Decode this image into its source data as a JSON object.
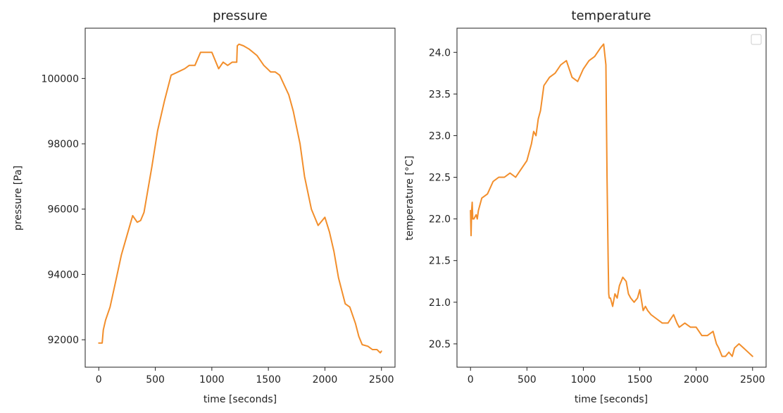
{
  "chart_data": [
    {
      "type": "line",
      "title": "pressure",
      "xlabel": "time [seconds]",
      "ylabel": "pressure [Pa]",
      "xlim": [
        -120,
        2620
      ],
      "ylim": [
        91160,
        101540
      ],
      "xticks": [
        0,
        500,
        1000,
        1500,
        2000,
        2500
      ],
      "xtick_labels": [
        "0",
        "500",
        "1000",
        "1500",
        "2000",
        "2500"
      ],
      "yticks": [
        92000,
        94000,
        96000,
        98000,
        100000
      ],
      "ytick_labels": [
        "92000",
        "94000",
        "96000",
        "98000",
        "100000"
      ],
      "legend": false,
      "grid": false,
      "series": [
        {
          "color": "#f28e2b",
          "x": [
            0,
            30,
            40,
            60,
            100,
            150,
            200,
            250,
            300,
            340,
            370,
            400,
            430,
            470,
            520,
            580,
            640,
            700,
            760,
            800,
            850,
            900,
            940,
            1000,
            1060,
            1100,
            1140,
            1180,
            1220,
            1225,
            1240,
            1280,
            1330,
            1400,
            1460,
            1520,
            1560,
            1600,
            1640,
            1680,
            1720,
            1780,
            1820,
            1880,
            1940,
            2000,
            2040,
            2080,
            2120,
            2150,
            2180,
            2220,
            2270,
            2300,
            2330,
            2380,
            2420,
            2460,
            2490,
            2500
          ],
          "y": [
            91900,
            91900,
            92300,
            92600,
            93000,
            93800,
            94600,
            95200,
            95800,
            95600,
            95650,
            95900,
            96500,
            97300,
            98400,
            99300,
            100100,
            100200,
            100300,
            100400,
            100400,
            100800,
            100800,
            100800,
            100300,
            100500,
            100400,
            100500,
            100500,
            101000,
            101050,
            101000,
            100900,
            100700,
            100400,
            100200,
            100200,
            100100,
            99800,
            99500,
            99000,
            98000,
            97000,
            96000,
            95500,
            95750,
            95300,
            94700,
            93900,
            93500,
            93100,
            93000,
            92500,
            92100,
            91850,
            91800,
            91700,
            91700,
            91600,
            91650
          ]
        }
      ]
    },
    {
      "type": "line",
      "title": "temperature",
      "xlabel": "time [seconds]",
      "ylabel": "temperature [°C]",
      "xlim": [
        -120,
        2620
      ],
      "ylim": [
        20.22,
        24.29
      ],
      "xticks": [
        0,
        500,
        1000,
        1500,
        2000,
        2500
      ],
      "xtick_labels": [
        "0",
        "500",
        "1000",
        "1500",
        "2000",
        "2500"
      ],
      "yticks": [
        20.5,
        21.0,
        21.5,
        22.0,
        22.5,
        23.0,
        23.5,
        24.0
      ],
      "ytick_labels": [
        "20.5",
        "21.0",
        "21.5",
        "22.0",
        "22.5",
        "23.0",
        "23.5",
        "24.0"
      ],
      "legend": "top-right",
      "grid": false,
      "series": [
        {
          "color": "#f28e2b",
          "x": [
            0,
            5,
            10,
            15,
            20,
            30,
            50,
            60,
            70,
            100,
            150,
            200,
            250,
            300,
            350,
            400,
            450,
            500,
            540,
            560,
            580,
            600,
            620,
            650,
            700,
            750,
            800,
            850,
            900,
            950,
            1000,
            1050,
            1100,
            1150,
            1180,
            1200,
            1210,
            1220,
            1225,
            1230,
            1240,
            1250,
            1260,
            1280,
            1300,
            1320,
            1350,
            1380,
            1400,
            1420,
            1450,
            1480,
            1500,
            1530,
            1550,
            1570,
            1600,
            1650,
            1700,
            1750,
            1800,
            1830,
            1850,
            1900,
            1950,
            2000,
            2050,
            2100,
            2150,
            2180,
            2200,
            2230,
            2260,
            2290,
            2320,
            2340,
            2380,
            2420,
            2460,
            2500
          ],
          "y": [
            22.1,
            21.8,
            22.1,
            22.2,
            22.0,
            22.0,
            22.05,
            22.0,
            22.1,
            22.25,
            22.3,
            22.45,
            22.5,
            22.5,
            22.55,
            22.5,
            22.6,
            22.7,
            22.9,
            23.05,
            23.0,
            23.2,
            23.3,
            23.6,
            23.7,
            23.75,
            23.85,
            23.9,
            23.7,
            23.65,
            23.8,
            23.9,
            23.95,
            24.05,
            24.1,
            23.85,
            22.5,
            21.5,
            21.1,
            21.05,
            21.05,
            21.0,
            20.95,
            21.1,
            21.05,
            21.2,
            21.3,
            21.25,
            21.1,
            21.05,
            21.0,
            21.05,
            21.15,
            20.9,
            20.95,
            20.9,
            20.85,
            20.8,
            20.75,
            20.75,
            20.85,
            20.75,
            20.7,
            20.75,
            20.7,
            20.7,
            20.6,
            20.6,
            20.65,
            20.5,
            20.45,
            20.35,
            20.35,
            20.4,
            20.35,
            20.45,
            20.5,
            20.45,
            20.4,
            20.35
          ]
        }
      ]
    }
  ]
}
